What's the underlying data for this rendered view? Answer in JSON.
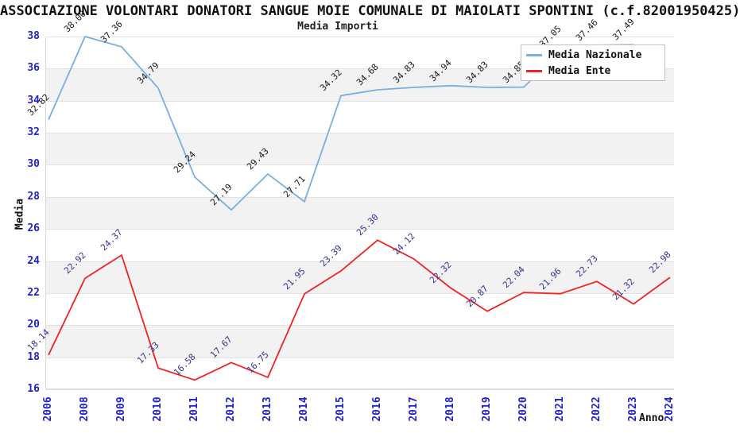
{
  "header": {
    "title": "ASSOCIAZIONE VOLONTARI DONATORI SANGUE MOIE COMUNALE DI MAIOLATI SPONTINI (c.f.82001950425)",
    "subtitle": "Media Importi"
  },
  "chart_data": {
    "type": "line",
    "title": "Media Importi",
    "xlabel": "Anno",
    "ylabel": "Media",
    "ylim": [
      16,
      38
    ],
    "ytick_step": 2,
    "grid": "horizontal gridlines with alternating gray/white bands",
    "legend_position": "top-right",
    "categories": [
      "2006",
      "2008",
      "2009",
      "2010",
      "2011",
      "2012",
      "2013",
      "2014",
      "2015",
      "2016",
      "2017",
      "2018",
      "2019",
      "2020",
      "2021",
      "2022",
      "2023",
      "2024"
    ],
    "series": [
      {
        "name": "Media Nazionale",
        "color": "#7aade2",
        "label_color": "#1a1a1a",
        "values": [
          32.82,
          38.0,
          37.36,
          34.79,
          29.24,
          27.19,
          29.43,
          27.71,
          34.32,
          34.68,
          34.83,
          34.94,
          34.83,
          34.85,
          37.05,
          37.46,
          37.49,
          null
        ]
      },
      {
        "name": "Media Ente",
        "color": "#ee2222",
        "label_color": "#333399",
        "values": [
          18.14,
          22.92,
          24.37,
          17.33,
          16.58,
          17.67,
          16.75,
          21.95,
          23.39,
          25.3,
          24.12,
          22.32,
          20.87,
          22.04,
          21.96,
          22.73,
          21.32,
          22.98
        ]
      }
    ],
    "colors": {
      "axis_tick_labels": "#2222cc",
      "band_gray": "#f2f2f2",
      "gridline": "#e2e2e2",
      "background": "#ffffff"
    }
  }
}
